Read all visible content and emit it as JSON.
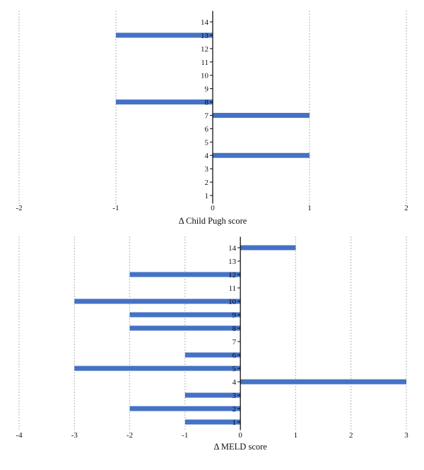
{
  "colors": {
    "bar": "#4472C4",
    "axis": "#000000",
    "grid": "#666666"
  },
  "chart_data": [
    {
      "type": "bar",
      "orientation": "horizontal",
      "xlabel": "Δ Child Pugh score",
      "ylabel": "",
      "xlim": [
        -2,
        2
      ],
      "xticks": [
        -2,
        -1,
        0,
        1,
        2
      ],
      "grid": "vertical dotted",
      "categories": [
        "1",
        "2",
        "3",
        "4",
        "5",
        "6",
        "7",
        "8",
        "9",
        "10",
        "11",
        "12",
        "13",
        "14"
      ],
      "values": [
        0,
        0,
        0,
        1,
        0,
        0,
        1,
        -1,
        0,
        0,
        0,
        0,
        -1,
        0
      ]
    },
    {
      "type": "bar",
      "orientation": "horizontal",
      "xlabel": "Δ MELD score",
      "ylabel": "",
      "xlim": [
        -4,
        3
      ],
      "xticks": [
        -4,
        -3,
        -2,
        -1,
        0,
        1,
        2,
        3
      ],
      "grid": "vertical dotted",
      "categories": [
        "1",
        "2",
        "3",
        "4",
        "5",
        "6",
        "7",
        "8",
        "9",
        "10",
        "11",
        "12",
        "13",
        "14"
      ],
      "values": [
        -1,
        -2,
        -1,
        3,
        -3,
        -1,
        0,
        -2,
        -2,
        -3,
        0,
        -2,
        0,
        1
      ]
    }
  ]
}
